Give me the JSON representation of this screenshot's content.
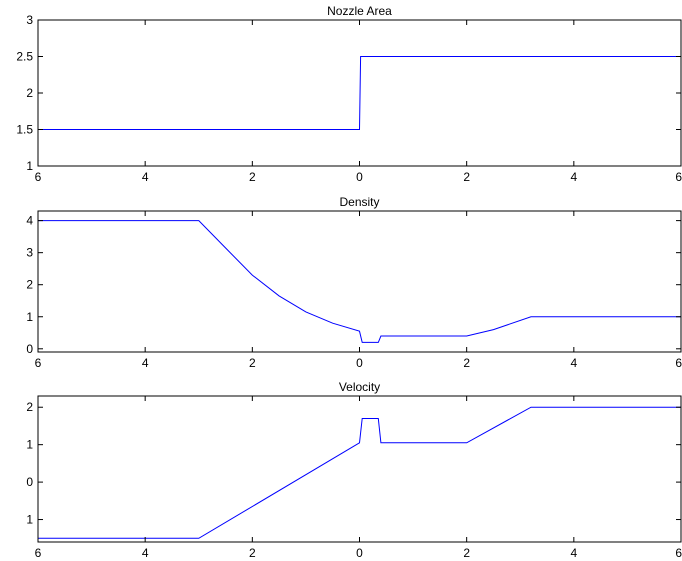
{
  "chart_data": [
    {
      "type": "line",
      "title": "Nozzle Area",
      "xlabel": "",
      "ylabel": "",
      "xlim": [
        -6,
        6
      ],
      "ylim": [
        1,
        3
      ],
      "grid": false,
      "xticks": [
        -6,
        -4,
        -2,
        0,
        2,
        4,
        6
      ],
      "xtick_labels": [
        "6",
        "4",
        "2",
        "0",
        "2",
        "4",
        "6"
      ],
      "yticks": [
        1,
        1.5,
        2,
        2.5,
        3
      ],
      "ytick_labels": [
        "1",
        "1.5",
        "2",
        "2.5",
        "3"
      ],
      "color": "#0000ff",
      "series": [
        {
          "x": [
            -6,
            0,
            0.02,
            6
          ],
          "y": [
            1.5,
            1.5,
            2.5,
            2.5
          ]
        }
      ]
    },
    {
      "type": "line",
      "title": "Density",
      "xlabel": "",
      "ylabel": "",
      "xlim": [
        -6,
        6
      ],
      "ylim": [
        -0.1,
        4.3
      ],
      "grid": false,
      "xticks": [
        -6,
        -4,
        -2,
        0,
        2,
        4,
        6
      ],
      "xtick_labels": [
        "6",
        "4",
        "2",
        "0",
        "2",
        "4",
        "6"
      ],
      "yticks": [
        0,
        1,
        2,
        3,
        4
      ],
      "ytick_labels": [
        "0",
        "1",
        "2",
        "3",
        "4"
      ],
      "color": "#0000ff",
      "series": [
        {
          "x": [
            -6,
            -3,
            -2.5,
            -2,
            -1.5,
            -1,
            -0.5,
            0,
            0.05,
            0.35,
            0.4,
            2,
            2.5,
            3.2,
            6
          ],
          "y": [
            4,
            4,
            3.15,
            2.3,
            1.65,
            1.15,
            0.8,
            0.55,
            0.2,
            0.2,
            0.4,
            0.4,
            0.6,
            1,
            1
          ]
        }
      ]
    },
    {
      "type": "line",
      "title": "Velocity",
      "xlabel": "",
      "ylabel": "",
      "xlim": [
        -6,
        6
      ],
      "ylim": [
        -1.6,
        2.3
      ],
      "grid": false,
      "xticks": [
        -6,
        -4,
        -2,
        0,
        2,
        4,
        6
      ],
      "xtick_labels": [
        "6",
        "4",
        "2",
        "0",
        "2",
        "4",
        "6"
      ],
      "yticks": [
        -1,
        0,
        1,
        2
      ],
      "ytick_labels": [
        "1",
        "0",
        "1",
        "2"
      ],
      "color": "#0000ff",
      "series": [
        {
          "x": [
            -6,
            -3,
            0,
            0.05,
            0.35,
            0.4,
            2,
            3.2,
            6
          ],
          "y": [
            -1.5,
            -1.5,
            1.05,
            1.7,
            1.7,
            1.05,
            1.05,
            2,
            2
          ]
        }
      ]
    }
  ]
}
